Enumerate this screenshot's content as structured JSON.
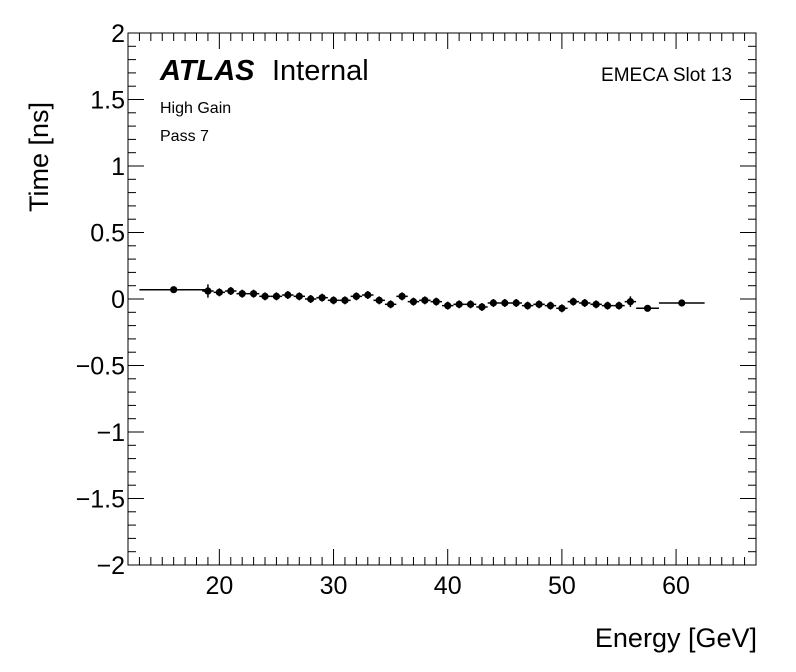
{
  "labels": {
    "atlas": "ATLAS",
    "internal": "Internal",
    "line1": "High Gain",
    "line2": "Pass 7",
    "slot": "EMECA Slot 13"
  },
  "chart_data": {
    "type": "scatter",
    "xlabel": "Energy [GeV]",
    "ylabel": "Time [ns]",
    "xlim": [
      12,
      67
    ],
    "ylim": [
      -2,
      2
    ],
    "x_ticks": [
      20,
      30,
      40,
      50,
      60
    ],
    "y_ticks": [
      2,
      1.5,
      1,
      0.5,
      0,
      -0.5,
      -1,
      -1.5,
      -2
    ],
    "y_tick_labels": [
      "2",
      "1.5",
      "1",
      "0.5",
      "0",
      "−0.5",
      "−1",
      "−1.5",
      "−2"
    ],
    "marker_color": "#000000",
    "series": [
      {
        "x": [
          16,
          19,
          20,
          21,
          22,
          23,
          24,
          25,
          26,
          27,
          28,
          29,
          30,
          31,
          32,
          33,
          34,
          35,
          36,
          37,
          38,
          39,
          40,
          41,
          42,
          43,
          44,
          45,
          46,
          47,
          48,
          49,
          50,
          51,
          52,
          53,
          54,
          55,
          56,
          57.5,
          60.5
        ],
        "y": [
          0.07,
          0.06,
          0.05,
          0.06,
          0.04,
          0.04,
          0.02,
          0.02,
          0.03,
          0.02,
          0.0,
          0.01,
          -0.01,
          -0.01,
          0.02,
          0.03,
          -0.01,
          -0.04,
          0.02,
          -0.02,
          -0.01,
          -0.02,
          -0.05,
          -0.04,
          -0.04,
          -0.06,
          -0.03,
          -0.03,
          -0.03,
          -0.05,
          -0.04,
          -0.05,
          -0.07,
          -0.02,
          -0.03,
          -0.04,
          -0.05,
          -0.05,
          -0.02,
          -0.07,
          -0.03
        ],
        "x_lo": [
          13,
          18.5,
          19.5,
          20.5,
          21.5,
          22.5,
          23.5,
          24.5,
          25.5,
          26.5,
          27.5,
          28.5,
          29.5,
          30.5,
          31.5,
          32.5,
          33.5,
          34.5,
          35.5,
          36.5,
          37.5,
          38.5,
          39.5,
          40.5,
          41.5,
          42.5,
          43.5,
          44.5,
          45.5,
          46.5,
          47.5,
          48.5,
          49.5,
          50.5,
          51.5,
          52.5,
          53.5,
          54.5,
          55.5,
          56.5,
          58.5
        ],
        "x_hi": [
          19,
          19.5,
          20.5,
          21.5,
          22.5,
          23.5,
          24.5,
          25.5,
          26.5,
          27.5,
          28.5,
          29.5,
          30.5,
          31.5,
          32.5,
          33.5,
          34.5,
          35.5,
          36.5,
          37.5,
          38.5,
          39.5,
          40.5,
          41.5,
          42.5,
          43.5,
          44.5,
          45.5,
          46.5,
          47.5,
          48.5,
          49.5,
          50.5,
          51.5,
          52.5,
          53.5,
          54.5,
          55.5,
          56.5,
          58.5,
          62.5
        ],
        "y_err": [
          0.01,
          0.05,
          0.03,
          0.03,
          0.03,
          0.03,
          0.03,
          0.03,
          0.03,
          0.03,
          0.03,
          0.03,
          0.03,
          0.03,
          0.03,
          0.03,
          0.03,
          0.03,
          0.03,
          0.03,
          0.03,
          0.03,
          0.03,
          0.03,
          0.03,
          0.03,
          0.03,
          0.03,
          0.03,
          0.03,
          0.03,
          0.03,
          0.03,
          0.03,
          0.03,
          0.03,
          0.03,
          0.03,
          0.04,
          0.01,
          0.01
        ]
      }
    ]
  }
}
